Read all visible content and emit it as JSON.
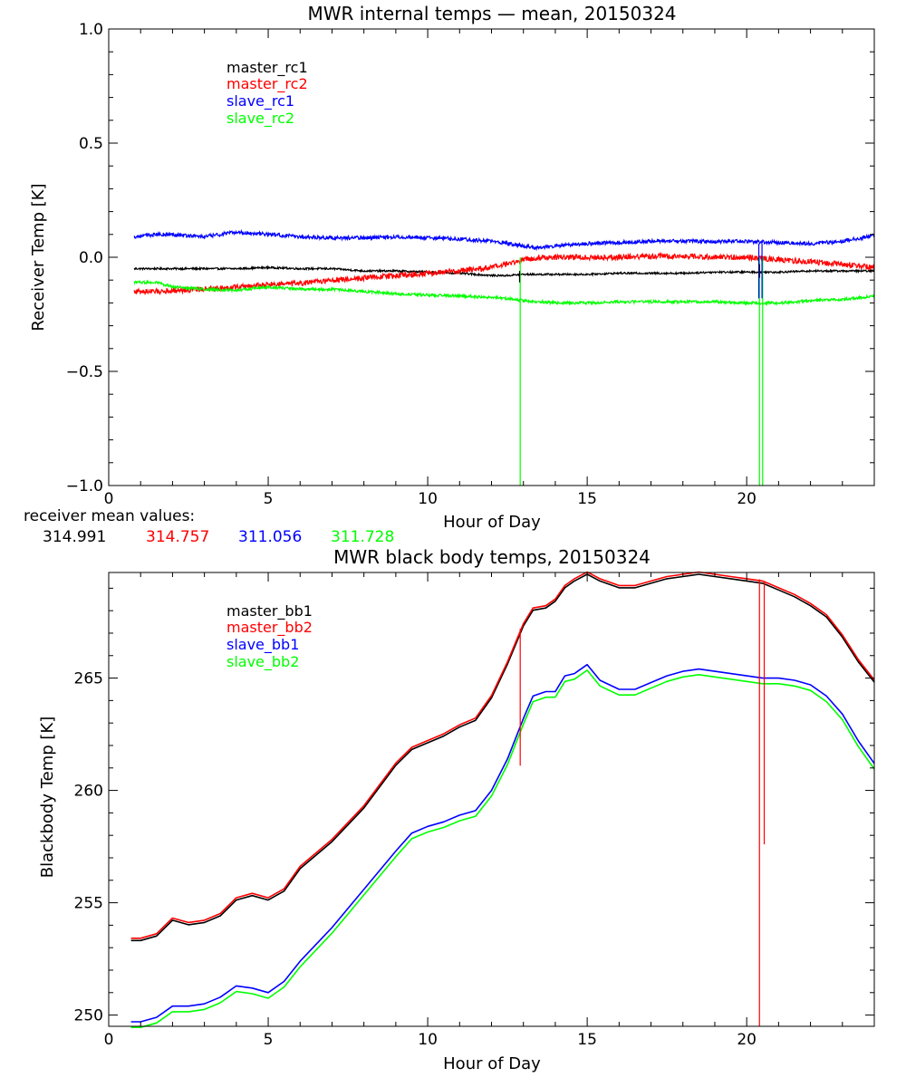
{
  "chart_data": [
    {
      "type": "line",
      "title": "MWR internal temps — mean, 20150324",
      "xlabel": "Hour of Day",
      "ylabel": "Receiver Temp [K]",
      "xlim": [
        0,
        24
      ],
      "ylim": [
        -1.0,
        1.0
      ],
      "xticks": [
        0,
        5,
        10,
        15,
        20
      ],
      "xtick_labels": [
        "0",
        "5",
        "10",
        "15",
        "20"
      ],
      "yticks": [
        -1.0,
        -0.5,
        0.0,
        0.5,
        1.0
      ],
      "ytick_labels": [
        "−1.0",
        "−0.5",
        "0.0",
        "0.5",
        "1.0"
      ],
      "legend_position": "top-left",
      "x": [
        0.8,
        1.5,
        2,
        3,
        4,
        5,
        6,
        7,
        8,
        9,
        10,
        11,
        12,
        12.5,
        13,
        13.5,
        14,
        15,
        16,
        17,
        18,
        19,
        20,
        21,
        22,
        23,
        24
      ],
      "noise": [
        0.004,
        0.012,
        0.008,
        0.006
      ],
      "series": [
        {
          "name": "master_rc1",
          "color": "#000000",
          "values": [
            -0.05,
            -0.05,
            -0.05,
            -0.05,
            -0.05,
            -0.045,
            -0.05,
            -0.05,
            -0.06,
            -0.06,
            -0.065,
            -0.07,
            -0.08,
            -0.08,
            -0.075,
            -0.075,
            -0.075,
            -0.075,
            -0.07,
            -0.07,
            -0.07,
            -0.065,
            -0.065,
            -0.065,
            -0.06,
            -0.06,
            -0.06
          ]
        },
        {
          "name": "master_rc2",
          "color": "#ff0000",
          "values": [
            -0.15,
            -0.15,
            -0.145,
            -0.14,
            -0.13,
            -0.12,
            -0.115,
            -0.1,
            -0.09,
            -0.08,
            -0.07,
            -0.06,
            -0.045,
            -0.03,
            -0.01,
            0.0,
            0.0,
            0.0,
            0.0,
            0.005,
            0.005,
            0.0,
            0.0,
            -0.01,
            -0.02,
            -0.03,
            -0.045
          ]
        },
        {
          "name": "slave_rc1",
          "color": "#0000ff",
          "values": [
            0.09,
            0.1,
            0.1,
            0.09,
            0.11,
            0.1,
            0.09,
            0.085,
            0.085,
            0.09,
            0.085,
            0.08,
            0.07,
            0.06,
            0.05,
            0.04,
            0.05,
            0.06,
            0.065,
            0.07,
            0.07,
            0.07,
            0.07,
            0.065,
            0.06,
            0.07,
            0.095
          ]
        },
        {
          "name": "slave_rc2",
          "color": "#00ff00",
          "values": [
            -0.11,
            -0.11,
            -0.13,
            -0.14,
            -0.145,
            -0.13,
            -0.14,
            -0.14,
            -0.15,
            -0.16,
            -0.165,
            -0.17,
            -0.175,
            -0.18,
            -0.19,
            -0.195,
            -0.2,
            -0.2,
            -0.195,
            -0.195,
            -0.195,
            -0.195,
            -0.2,
            -0.2,
            -0.19,
            -0.185,
            -0.17
          ]
        }
      ],
      "spikes": [
        {
          "x": 12.9,
          "from": 0.0,
          "to": -1.0,
          "color": "#00ff00"
        },
        {
          "x": 20.4,
          "from": 0.0,
          "to": -1.0,
          "color": "#00ff00"
        },
        {
          "x": 20.5,
          "from": 0.0,
          "to": -1.0,
          "color": "#00ff00"
        },
        {
          "x": 20.38,
          "from": 0.06,
          "to": -0.18,
          "color": "#0000ff"
        },
        {
          "x": 20.48,
          "from": 0.06,
          "to": -0.18,
          "color": "#0000ff"
        },
        {
          "x": 12.88,
          "from": -0.06,
          "to": -0.11,
          "color": "#000000"
        },
        {
          "x": 20.4,
          "from": -0.03,
          "to": -0.09,
          "color": "#000000"
        }
      ]
    },
    {
      "type": "line",
      "title": "MWR black body temps, 20150324",
      "xlabel": "Hour of Day",
      "ylabel": "Blackbody Temp [K]",
      "xlim": [
        0,
        24
      ],
      "ylim": [
        249.5,
        269.7
      ],
      "xticks": [
        0,
        5,
        10,
        15,
        20
      ],
      "xtick_labels": [
        "0",
        "5",
        "10",
        "15",
        "20"
      ],
      "yticks": [
        250,
        255,
        260,
        265
      ],
      "ytick_labels": [
        "250",
        "255",
        "260",
        "265"
      ],
      "legend_position": "top-left",
      "x": [
        0.7,
        1.0,
        1.5,
        2.0,
        2.5,
        3.0,
        3.5,
        4.0,
        4.5,
        5.0,
        5.5,
        6.0,
        7.0,
        8.0,
        9.0,
        9.5,
        10.0,
        10.5,
        11.0,
        11.5,
        12.0,
        12.5,
        13.0,
        13.3,
        13.7,
        14.0,
        14.3,
        14.6,
        15.0,
        15.4,
        16.0,
        16.5,
        17.0,
        17.5,
        18.0,
        18.5,
        19.0,
        19.5,
        20.0,
        20.5,
        21.0,
        21.5,
        22.0,
        22.5,
        23.0,
        23.5,
        24.0
      ],
      "master_values": [
        253.4,
        253.4,
        253.6,
        254.3,
        254.1,
        254.2,
        254.5,
        255.2,
        255.4,
        255.2,
        255.6,
        256.6,
        257.8,
        259.3,
        261.2,
        261.9,
        262.2,
        262.5,
        262.9,
        263.2,
        264.2,
        265.7,
        267.4,
        268.1,
        268.2,
        268.5,
        269.1,
        269.4,
        269.7,
        269.4,
        269.1,
        269.1,
        269.3,
        269.5,
        269.6,
        269.7,
        269.6,
        269.5,
        269.4,
        269.3,
        269.0,
        268.7,
        268.3,
        267.8,
        266.9,
        265.8,
        264.9
      ],
      "slave_values": [
        249.7,
        249.7,
        249.9,
        250.4,
        250.4,
        250.5,
        250.8,
        251.3,
        251.2,
        251.0,
        251.5,
        252.4,
        253.9,
        255.6,
        257.3,
        258.1,
        258.4,
        258.6,
        258.9,
        259.1,
        260.0,
        261.4,
        263.2,
        264.2,
        264.4,
        264.4,
        265.1,
        265.2,
        265.6,
        264.9,
        264.5,
        264.5,
        264.8,
        265.1,
        265.3,
        265.4,
        265.3,
        265.2,
        265.1,
        265.0,
        265.0,
        264.9,
        264.7,
        264.2,
        263.4,
        262.2,
        261.2
      ],
      "series": [
        {
          "name": "master_bb1",
          "color": "#000000",
          "base": "master",
          "offset": -0.08
        },
        {
          "name": "master_bb2",
          "color": "#ff0000",
          "base": "master",
          "offset": 0.02
        },
        {
          "name": "slave_bb1",
          "color": "#0000ff",
          "base": "slave",
          "offset": 0.0
        },
        {
          "name": "slave_bb2",
          "color": "#00ff00",
          "base": "slave",
          "offset": -0.25
        }
      ],
      "spikes": [
        {
          "x": 12.9,
          "from": 267.2,
          "to": 261.1,
          "color": "#ff0000"
        },
        {
          "x": 20.4,
          "from": 269.4,
          "to": 249.5,
          "color": "#ff0000"
        },
        {
          "x": 20.55,
          "from": 269.3,
          "to": 257.6,
          "color": "#ff0000"
        }
      ]
    }
  ],
  "receiver_means": {
    "label": "receiver mean values:",
    "values": [
      {
        "text": "314.991",
        "color": "#000000"
      },
      {
        "text": "314.757",
        "color": "#ff0000"
      },
      {
        "text": "311.056",
        "color": "#0000ff"
      },
      {
        "text": "311.728",
        "color": "#00ff00"
      }
    ]
  }
}
